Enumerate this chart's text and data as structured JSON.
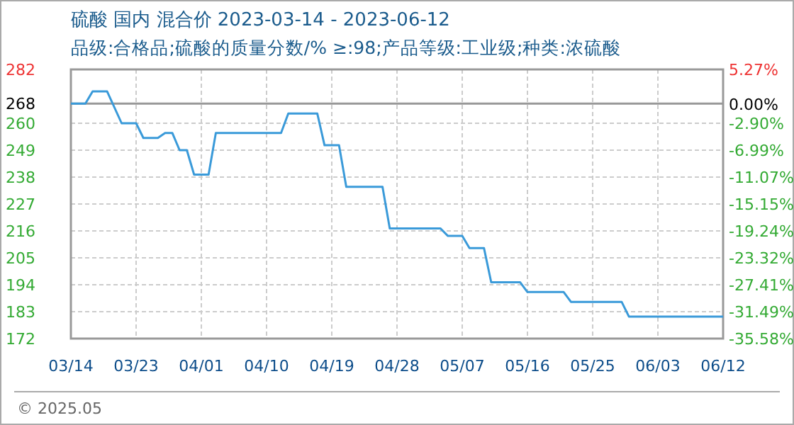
{
  "chart_data": {
    "type": "line",
    "title": "硫酸 国内 混合价 2023-03-14 - 2023-06-12",
    "subtitle": "品级:合格品;硫酸的质量分数/%  ≥:98;产品等级:工业级;种类:浓硫酸",
    "x": [
      "2023-03-14",
      "2023-03-16",
      "2023-03-17",
      "2023-03-19",
      "2023-03-21",
      "2023-03-23",
      "2023-03-24",
      "2023-03-26",
      "2023-03-27",
      "2023-03-28",
      "2023-03-29",
      "2023-03-30",
      "2023-03-31",
      "2023-04-02",
      "2023-04-03",
      "2023-04-12",
      "2023-04-13",
      "2023-04-17",
      "2023-04-18",
      "2023-04-20",
      "2023-04-21",
      "2023-04-26",
      "2023-04-27",
      "2023-05-04",
      "2023-05-05",
      "2023-05-07",
      "2023-05-08",
      "2023-05-10",
      "2023-05-11",
      "2023-05-15",
      "2023-05-16",
      "2023-05-21",
      "2023-05-22",
      "2023-05-29",
      "2023-05-30",
      "2023-06-12"
    ],
    "series": [
      {
        "color": "#3a9ad9",
        "values": [
          268,
          268,
          273,
          273,
          260,
          260,
          254,
          254,
          256,
          256,
          249,
          249,
          239,
          239,
          256,
          256,
          264,
          264,
          251,
          251,
          234,
          234,
          217,
          217,
          214,
          214,
          209,
          209,
          195,
          195,
          191,
          191,
          187,
          187,
          181,
          181
        ]
      }
    ],
    "xlim": [
      "2023-03-14",
      "2023-06-12"
    ],
    "xticks": [
      {
        "value": "2023-03-14",
        "label": "03/14"
      },
      {
        "value": "2023-03-23",
        "label": "03/23"
      },
      {
        "value": "2023-04-01",
        "label": "04/01"
      },
      {
        "value": "2023-04-10",
        "label": "04/10"
      },
      {
        "value": "2023-04-19",
        "label": "04/19"
      },
      {
        "value": "2023-04-28",
        "label": "04/28"
      },
      {
        "value": "2023-05-07",
        "label": "05/07"
      },
      {
        "value": "2023-05-16",
        "label": "05/16"
      },
      {
        "value": "2023-05-25",
        "label": "05/25"
      },
      {
        "value": "2023-06-03",
        "label": "06/03"
      },
      {
        "value": "2023-06-12",
        "label": "06/12"
      }
    ],
    "ylim": [
      172,
      282
    ],
    "yticks": [
      172,
      183,
      194,
      205,
      216,
      227,
      238,
      249,
      260,
      268,
      282
    ],
    "y2lim": [
      -35.58,
      5.27
    ],
    "y2ticks": [
      {
        "value": 5.27,
        "label": "5.27%"
      },
      {
        "value": 0,
        "label": "0.00%"
      },
      {
        "value": -2.9,
        "label": "-2.90%"
      },
      {
        "value": -6.99,
        "label": "-6.99%"
      },
      {
        "value": -11.07,
        "label": "-11.07%"
      },
      {
        "value": -15.15,
        "label": "-15.15%"
      },
      {
        "value": -19.24,
        "label": "-19.24%"
      },
      {
        "value": -23.32,
        "label": "-23.32%"
      },
      {
        "value": -27.41,
        "label": "-27.41%"
      },
      {
        "value": -31.49,
        "label": "-31.49%"
      },
      {
        "value": -35.58,
        "label": "-35.58%"
      }
    ],
    "ref_lines": [
      {
        "axis": "y",
        "value": 268,
        "color": "#999999"
      }
    ],
    "grid": true,
    "annotations": [
      "© 2025.05"
    ]
  }
}
